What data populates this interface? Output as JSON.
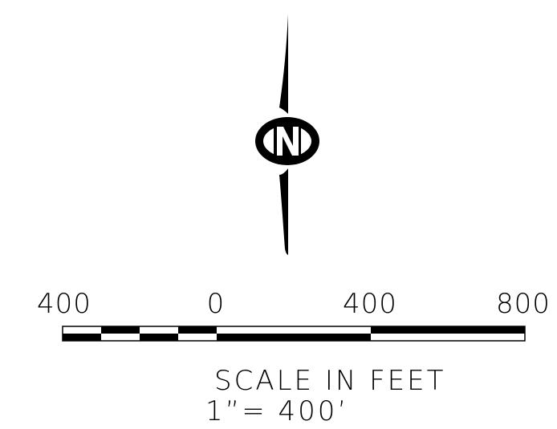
{
  "north_arrow": {
    "letter": "N"
  },
  "scale_bar": {
    "tick_labels": [
      "400",
      "0",
      "400",
      "800"
    ],
    "title": "SCALE IN FEET",
    "ratio": "1”= 400’",
    "segments": [
      {
        "from": -400,
        "to": -300,
        "fill": "#ffffff"
      },
      {
        "from": -300,
        "to": -200,
        "fill": "#000000"
      },
      {
        "from": -200,
        "to": -100,
        "fill": "#ffffff"
      },
      {
        "from": -100,
        "to": 0,
        "fill": "#000000"
      },
      {
        "from": 0,
        "to": 400,
        "fill": "#ffffff"
      },
      {
        "from": 400,
        "to": 800,
        "fill": "#000000"
      }
    ]
  },
  "colors": {
    "ink": "#000000",
    "paper": "#ffffff"
  }
}
